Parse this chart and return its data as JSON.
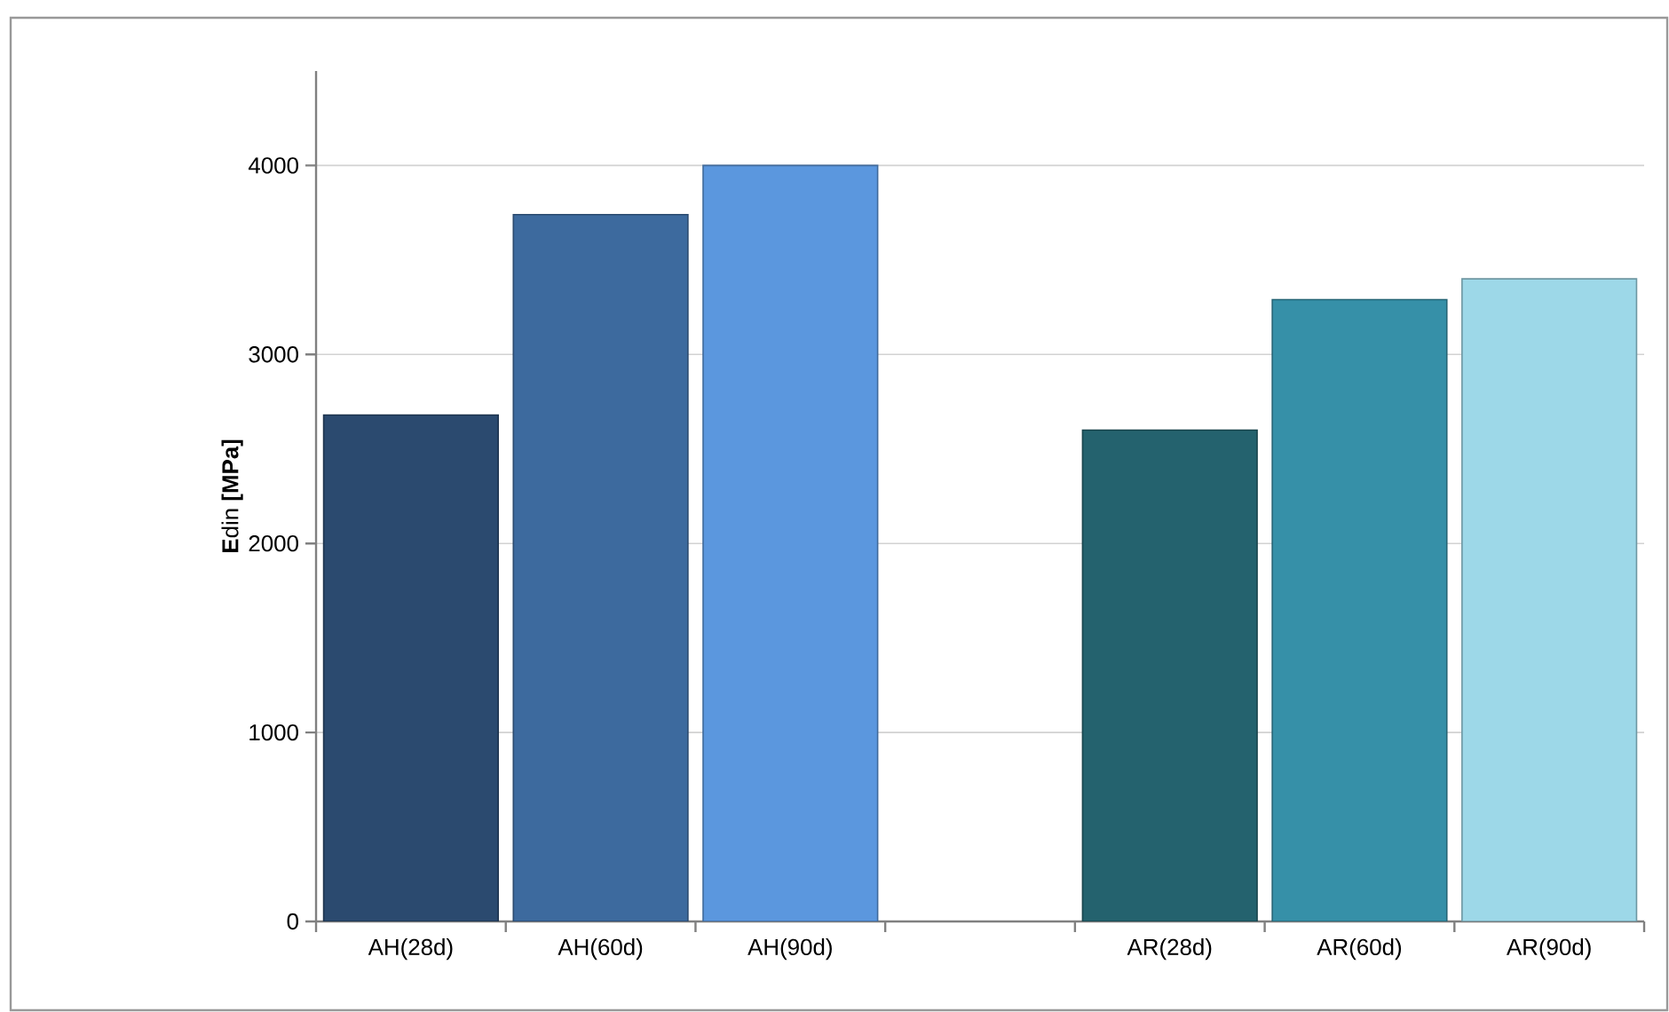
{
  "chart_data": {
    "type": "bar",
    "ylabel": "**E**din **[MPa]**",
    "categories": [
      "AH(28d)",
      "AH(60d)",
      "AH(90d)",
      null,
      "AR(28d)",
      "AR(60d)",
      "AR(90d)"
    ],
    "values": [
      2680,
      3740,
      4000,
      null,
      2600,
      3290,
      3400
    ],
    "colors": [
      "#2b4a6f",
      "#3d6a9e",
      "#5b97de",
      "#ffffff",
      "#24626e",
      "#3690a8",
      "#9dd8e8"
    ],
    "ylim": [
      0,
      4500
    ],
    "yticks": [
      0,
      1000,
      2000,
      3000,
      4000
    ],
    "grid": "y"
  }
}
